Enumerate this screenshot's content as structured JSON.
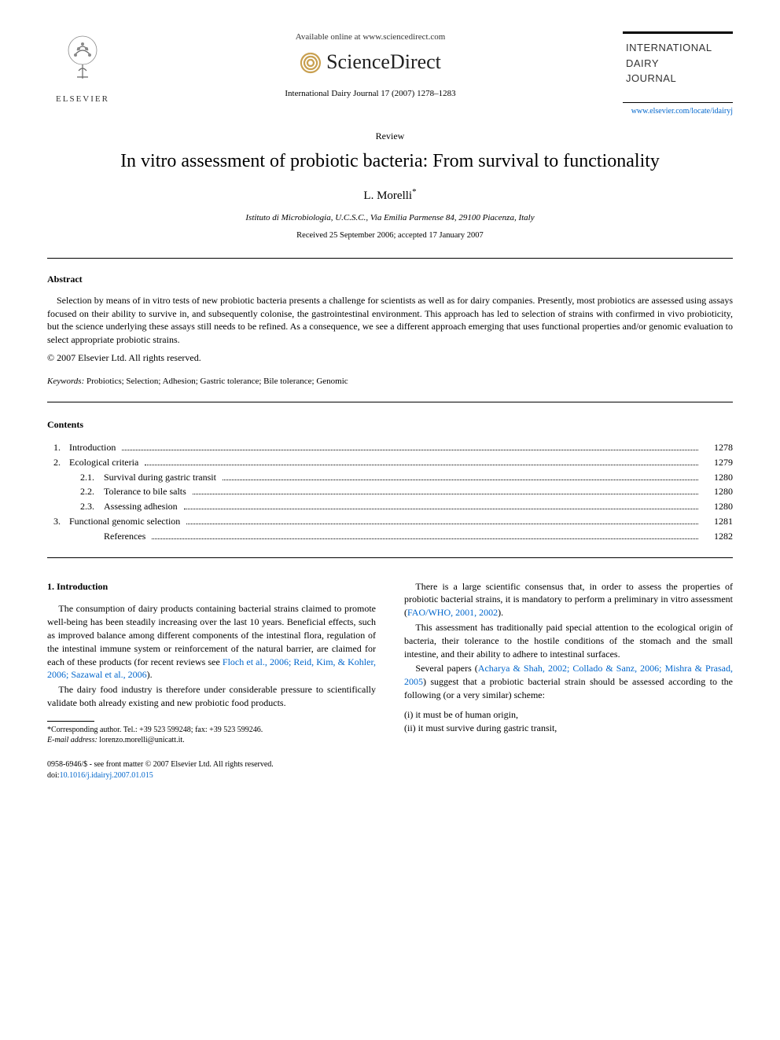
{
  "header": {
    "available_text": "Available online at www.sciencedirect.com",
    "sciencedirect_label": "ScienceDirect",
    "elsevier_label": "ELSEVIER",
    "citation": "International Dairy Journal 17 (2007) 1278–1283",
    "journal_name_line1": "INTERNATIONAL",
    "journal_name_line2": "DAIRY",
    "journal_name_line3": "JOURNAL",
    "journal_url": "www.elsevier.com/locate/idairyj"
  },
  "article": {
    "type_label": "Review",
    "title": "In vitro assessment of probiotic bacteria: From survival to functionality",
    "author": "L. Morelli",
    "author_marker": "*",
    "affiliation": "Istituto di Microbiologia, U.C.S.C., Via Emilia Parmense 84, 29100 Piacenza, Italy",
    "dates": "Received 25 September 2006; accepted 17 January 2007"
  },
  "abstract": {
    "heading": "Abstract",
    "text": "Selection by means of in vitro tests of new probiotic bacteria presents a challenge for scientists as well as for dairy companies. Presently, most probiotics are assessed using assays focused on their ability to survive in, and subsequently colonise, the gastrointestinal environment. This approach has led to selection of strains with confirmed in vivo probioticity, but the science underlying these assays still needs to be refined. As a consequence, we see a different approach emerging that uses functional properties and/or genomic evaluation to select appropriate probiotic strains.",
    "copyright": "© 2007 Elsevier Ltd. All rights reserved."
  },
  "keywords": {
    "label": "Keywords:",
    "text": " Probiotics; Selection; Adhesion; Gastric tolerance; Bile tolerance; Genomic"
  },
  "contents": {
    "heading": "Contents",
    "items": [
      {
        "num": "1.",
        "label": "Introduction",
        "page": "1278",
        "level": 0
      },
      {
        "num": "2.",
        "label": "Ecological criteria",
        "page": "1279",
        "level": 0
      },
      {
        "num": "2.1.",
        "label": "Survival during gastric transit",
        "page": "1280",
        "level": 1
      },
      {
        "num": "2.2.",
        "label": "Tolerance to bile salts",
        "page": "1280",
        "level": 1
      },
      {
        "num": "2.3.",
        "label": "Assessing adhesion",
        "page": "1280",
        "level": 1
      },
      {
        "num": "3.",
        "label": "Functional genomic selection",
        "page": "1281",
        "level": 0
      },
      {
        "num": "",
        "label": "References",
        "page": "1282",
        "level": 1
      }
    ]
  },
  "body": {
    "intro_heading": "1. Introduction",
    "p1": "The consumption of dairy products containing bacterial strains claimed to promote well-being has been steadily increasing over the last 10 years. Beneficial effects, such as improved balance among different components of the intestinal flora, regulation of the intestinal immune system or reinforcement of the natural barrier, are claimed for each of these products (for recent reviews see ",
    "p1_ref": "Floch et al., 2006; Reid, Kim, & Kohler, 2006; Sazawal et al., 2006",
    "p1_end": ").",
    "p2": "The dairy food industry is therefore under considerable pressure to scientifically validate both already existing and new probiotic food products.",
    "p3": "There is a large scientific consensus that, in order to assess the properties of probiotic bacterial strains, it is mandatory to perform a preliminary in vitro assessment (",
    "p3_ref": "FAO/WHO, 2001, 2002",
    "p3_end": ").",
    "p4": "This assessment has traditionally paid special attention to the ecological origin of bacteria, their tolerance to the hostile conditions of the stomach and the small intestine, and their ability to adhere to intestinal surfaces.",
    "p5a": "Several papers (",
    "p5_ref": "Acharya & Shah, 2002; Collado & Sanz, 2006; Mishra & Prasad, 2005",
    "p5b": ") suggest that a probiotic bacterial strain should be assessed according to the following (or a very similar) scheme:",
    "list_i": "(i) it must be of human origin,",
    "list_ii": "(ii) it must survive during gastric transit,"
  },
  "footnote": {
    "corresponding": "*Corresponding author. Tel.: +39 523 599248; fax: +39 523 599246.",
    "email_label": "E-mail address:",
    "email": " lorenzo.morelli@unicatt.it."
  },
  "footer": {
    "left_line1": "0958-6946/$ - see front matter © 2007 Elsevier Ltd. All rights reserved.",
    "left_line2_label": "doi:",
    "left_line2_doi": "10.1016/j.idairyj.2007.01.015"
  },
  "colors": {
    "link": "#0066cc",
    "text": "#000000",
    "elsevier_orange": "#e67817"
  }
}
